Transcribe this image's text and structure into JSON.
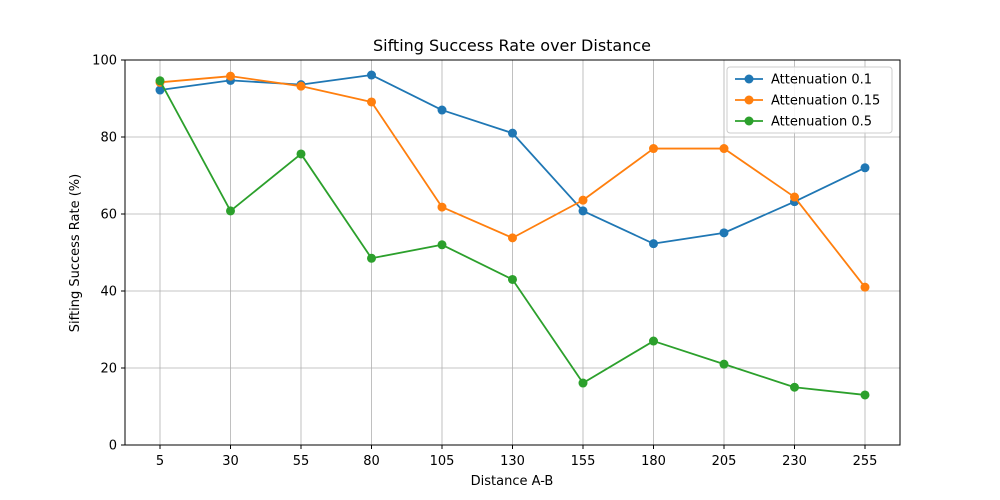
{
  "chart_data": {
    "type": "line",
    "title": "Sifting Success Rate over Distance",
    "xlabel": "Distance A-B",
    "ylabel": "Sifting Success Rate (%)",
    "x": [
      5,
      30,
      55,
      80,
      105,
      130,
      155,
      180,
      205,
      230,
      255
    ],
    "ylim": [
      0,
      100
    ],
    "yticks": [
      0,
      20,
      40,
      60,
      80,
      100
    ],
    "grid": true,
    "legend_position": "top-right",
    "series": [
      {
        "name": "Attenuation 0.1",
        "color": "#1f77b4",
        "values": [
          92.2,
          94.7,
          93.6,
          96.1,
          87.0,
          81.0,
          60.8,
          52.3,
          55.1,
          63.2,
          72.0
        ]
      },
      {
        "name": "Attenuation 0.15",
        "color": "#ff7f0e",
        "values": [
          94.2,
          95.8,
          93.2,
          89.1,
          61.8,
          53.8,
          63.6,
          77.0,
          77.0,
          64.4,
          41.0
        ]
      },
      {
        "name": "Attenuation 0.5",
        "color": "#2ca02c",
        "values": [
          94.6,
          60.8,
          75.6,
          48.5,
          52.0,
          43.0,
          16.1,
          27.0,
          21.0,
          15.0,
          13.0
        ]
      }
    ]
  }
}
